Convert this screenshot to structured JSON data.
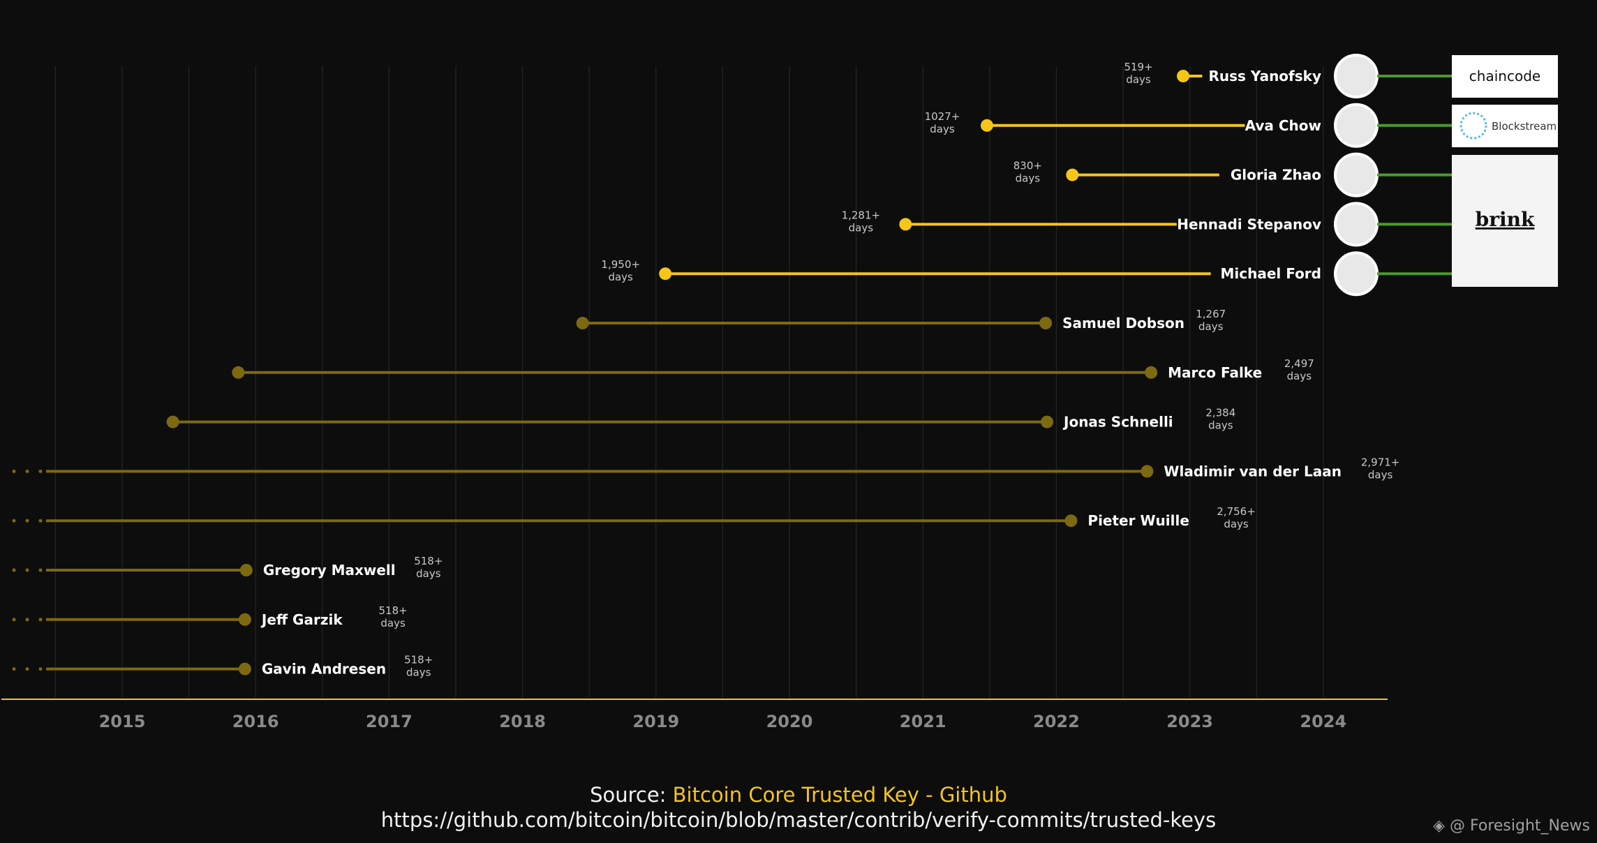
{
  "chart_data": {
    "type": "timeline",
    "x_axis": {
      "ticks": [
        "2015",
        "2016",
        "2017",
        "2018",
        "2019",
        "2020",
        "2021",
        "2022",
        "2023",
        "2024"
      ]
    },
    "series": [
      {
        "name": "Russ Yanofsky",
        "start": 2022.95,
        "end": null,
        "active": true,
        "duration": "519+",
        "unit": "days",
        "affiliation": "chaincode"
      },
      {
        "name": "Ava Chow",
        "start": 2021.48,
        "end": null,
        "active": true,
        "duration": "1027+",
        "unit": "days",
        "affiliation": "Blockstream"
      },
      {
        "name": "Gloria Zhao",
        "start": 2022.12,
        "end": null,
        "active": true,
        "duration": "830+",
        "unit": "days",
        "affiliation": "brink"
      },
      {
        "name": "Hennadi Stepanov",
        "start": 2020.87,
        "end": null,
        "active": true,
        "duration": "1,281+",
        "unit": "days",
        "affiliation": "brink"
      },
      {
        "name": "Michael Ford",
        "start": 2019.07,
        "end": null,
        "active": true,
        "duration": "1,950+",
        "unit": "days",
        "affiliation": "brink"
      },
      {
        "name": "Samuel Dobson",
        "start": 2018.45,
        "end": 2021.92,
        "active": false,
        "duration": "1,267",
        "unit": "days"
      },
      {
        "name": "Marco Falke",
        "start": 2015.87,
        "end": 2022.71,
        "active": false,
        "duration": "2,497",
        "unit": "days"
      },
      {
        "name": "Jonas Schnelli",
        "start": 2015.38,
        "end": 2021.93,
        "active": false,
        "duration": "2,384",
        "unit": "days"
      },
      {
        "name": "Wladimir van der Laan",
        "start": null,
        "end": 2022.68,
        "active": false,
        "duration": "2,971+",
        "unit": "days"
      },
      {
        "name": "Pieter Wuille",
        "start": null,
        "end": 2022.11,
        "active": false,
        "duration": "2,756+",
        "unit": "days"
      },
      {
        "name": "Gregory Maxwell",
        "start": null,
        "end": 2015.93,
        "active": false,
        "duration": "518+",
        "unit": "days"
      },
      {
        "name": "Jeff Garzik",
        "start": null,
        "end": 2015.92,
        "active": false,
        "duration": "518+",
        "unit": "days"
      },
      {
        "name": "Gavin Andresen",
        "start": null,
        "end": 2015.92,
        "active": false,
        "duration": "518+",
        "unit": "days"
      }
    ],
    "logos": [
      "chaincode",
      "Blockstream",
      "brink"
    ],
    "colors": {
      "active": "#f5c518",
      "inactive": "#7d6a10",
      "affiliation_link": "#4a9a2e",
      "axis": "#f5c518",
      "grid": "#2a2a2a"
    }
  },
  "footer": {
    "source_prefix": "Source: ",
    "source_link": "Bitcoin Core Trusted Key - Github",
    "url": "https://github.com/bitcoin/bitcoin/blob/master/contrib/verify-commits/trusted-keys"
  },
  "watermark": "@ Foresight_News"
}
